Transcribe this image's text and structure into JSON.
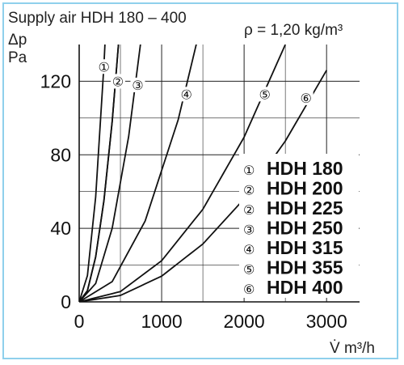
{
  "chart_data": {
    "type": "line",
    "title": "Supply air HDH 180 – 400",
    "density_note": "ρ = 1,20 kg/m³",
    "ylabel_symbol": "Δp",
    "ylabel_unit": "Pa",
    "xlabel": "V̇ m³/h",
    "xlim": [
      0,
      3400
    ],
    "ylim": [
      0,
      140
    ],
    "xticks": [
      0,
      1000,
      2000,
      3000
    ],
    "yticks": [
      0,
      40,
      80,
      120
    ],
    "xtick_labels": [
      "0",
      "1000",
      "2000",
      "3000"
    ],
    "ytick_labels": [
      "0",
      "40",
      "80",
      "120"
    ],
    "grid": true,
    "legend_position": "bottom-right",
    "series": [
      {
        "marker": "①",
        "label": "HDH 180",
        "x": [
          0,
          100,
          200,
          300,
          350
        ],
        "y": [
          0,
          14.3,
          57.1,
          128.6,
          175
        ]
      },
      {
        "marker": "②",
        "label": "HDH 200",
        "x": [
          0,
          100,
          200,
          300,
          400,
          500
        ],
        "y": [
          0,
          6.1,
          24.5,
          55.1,
          98,
          153
        ]
      },
      {
        "marker": "②",
        "label": "HDH 225",
        "x": [
          0,
          100,
          200,
          300,
          400,
          500
        ],
        "y": [
          0,
          6.1,
          24.5,
          55.1,
          98,
          153
        ]
      },
      {
        "marker": "③",
        "label": "HDH 250",
        "x": [
          0,
          200,
          400,
          600,
          800
        ],
        "y": [
          0,
          10,
          40,
          90,
          160
        ]
      },
      {
        "marker": "④",
        "label": "HDH 315",
        "x": [
          0,
          400,
          800,
          1200,
          1500
        ],
        "y": [
          0,
          11,
          44,
          99,
          155
        ]
      },
      {
        "marker": "⑤",
        "label": "HDH 355",
        "x": [
          0,
          500,
          1000,
          1500,
          2000,
          2500
        ],
        "y": [
          0,
          5.6,
          22.4,
          50.4,
          89.6,
          140
        ]
      },
      {
        "marker": "⑥",
        "label": "HDH 400",
        "x": [
          0,
          500,
          1000,
          1500,
          2000,
          2500,
          3000
        ],
        "y": [
          0,
          3.5,
          14,
          31.5,
          56,
          87.5,
          126
        ]
      }
    ],
    "curve_markers": [
      {
        "text": "①",
        "x": 300,
        "y": 128
      },
      {
        "text": "②",
        "x": 470,
        "y": 120
      },
      {
        "text": "③",
        "x": 710,
        "y": 118
      },
      {
        "text": "④",
        "x": 1300,
        "y": 113
      },
      {
        "text": "⑤",
        "x": 2250,
        "y": 113
      },
      {
        "text": "⑥",
        "x": 2750,
        "y": 111
      }
    ],
    "line_color": "#111111",
    "grid_color": "#222222"
  }
}
